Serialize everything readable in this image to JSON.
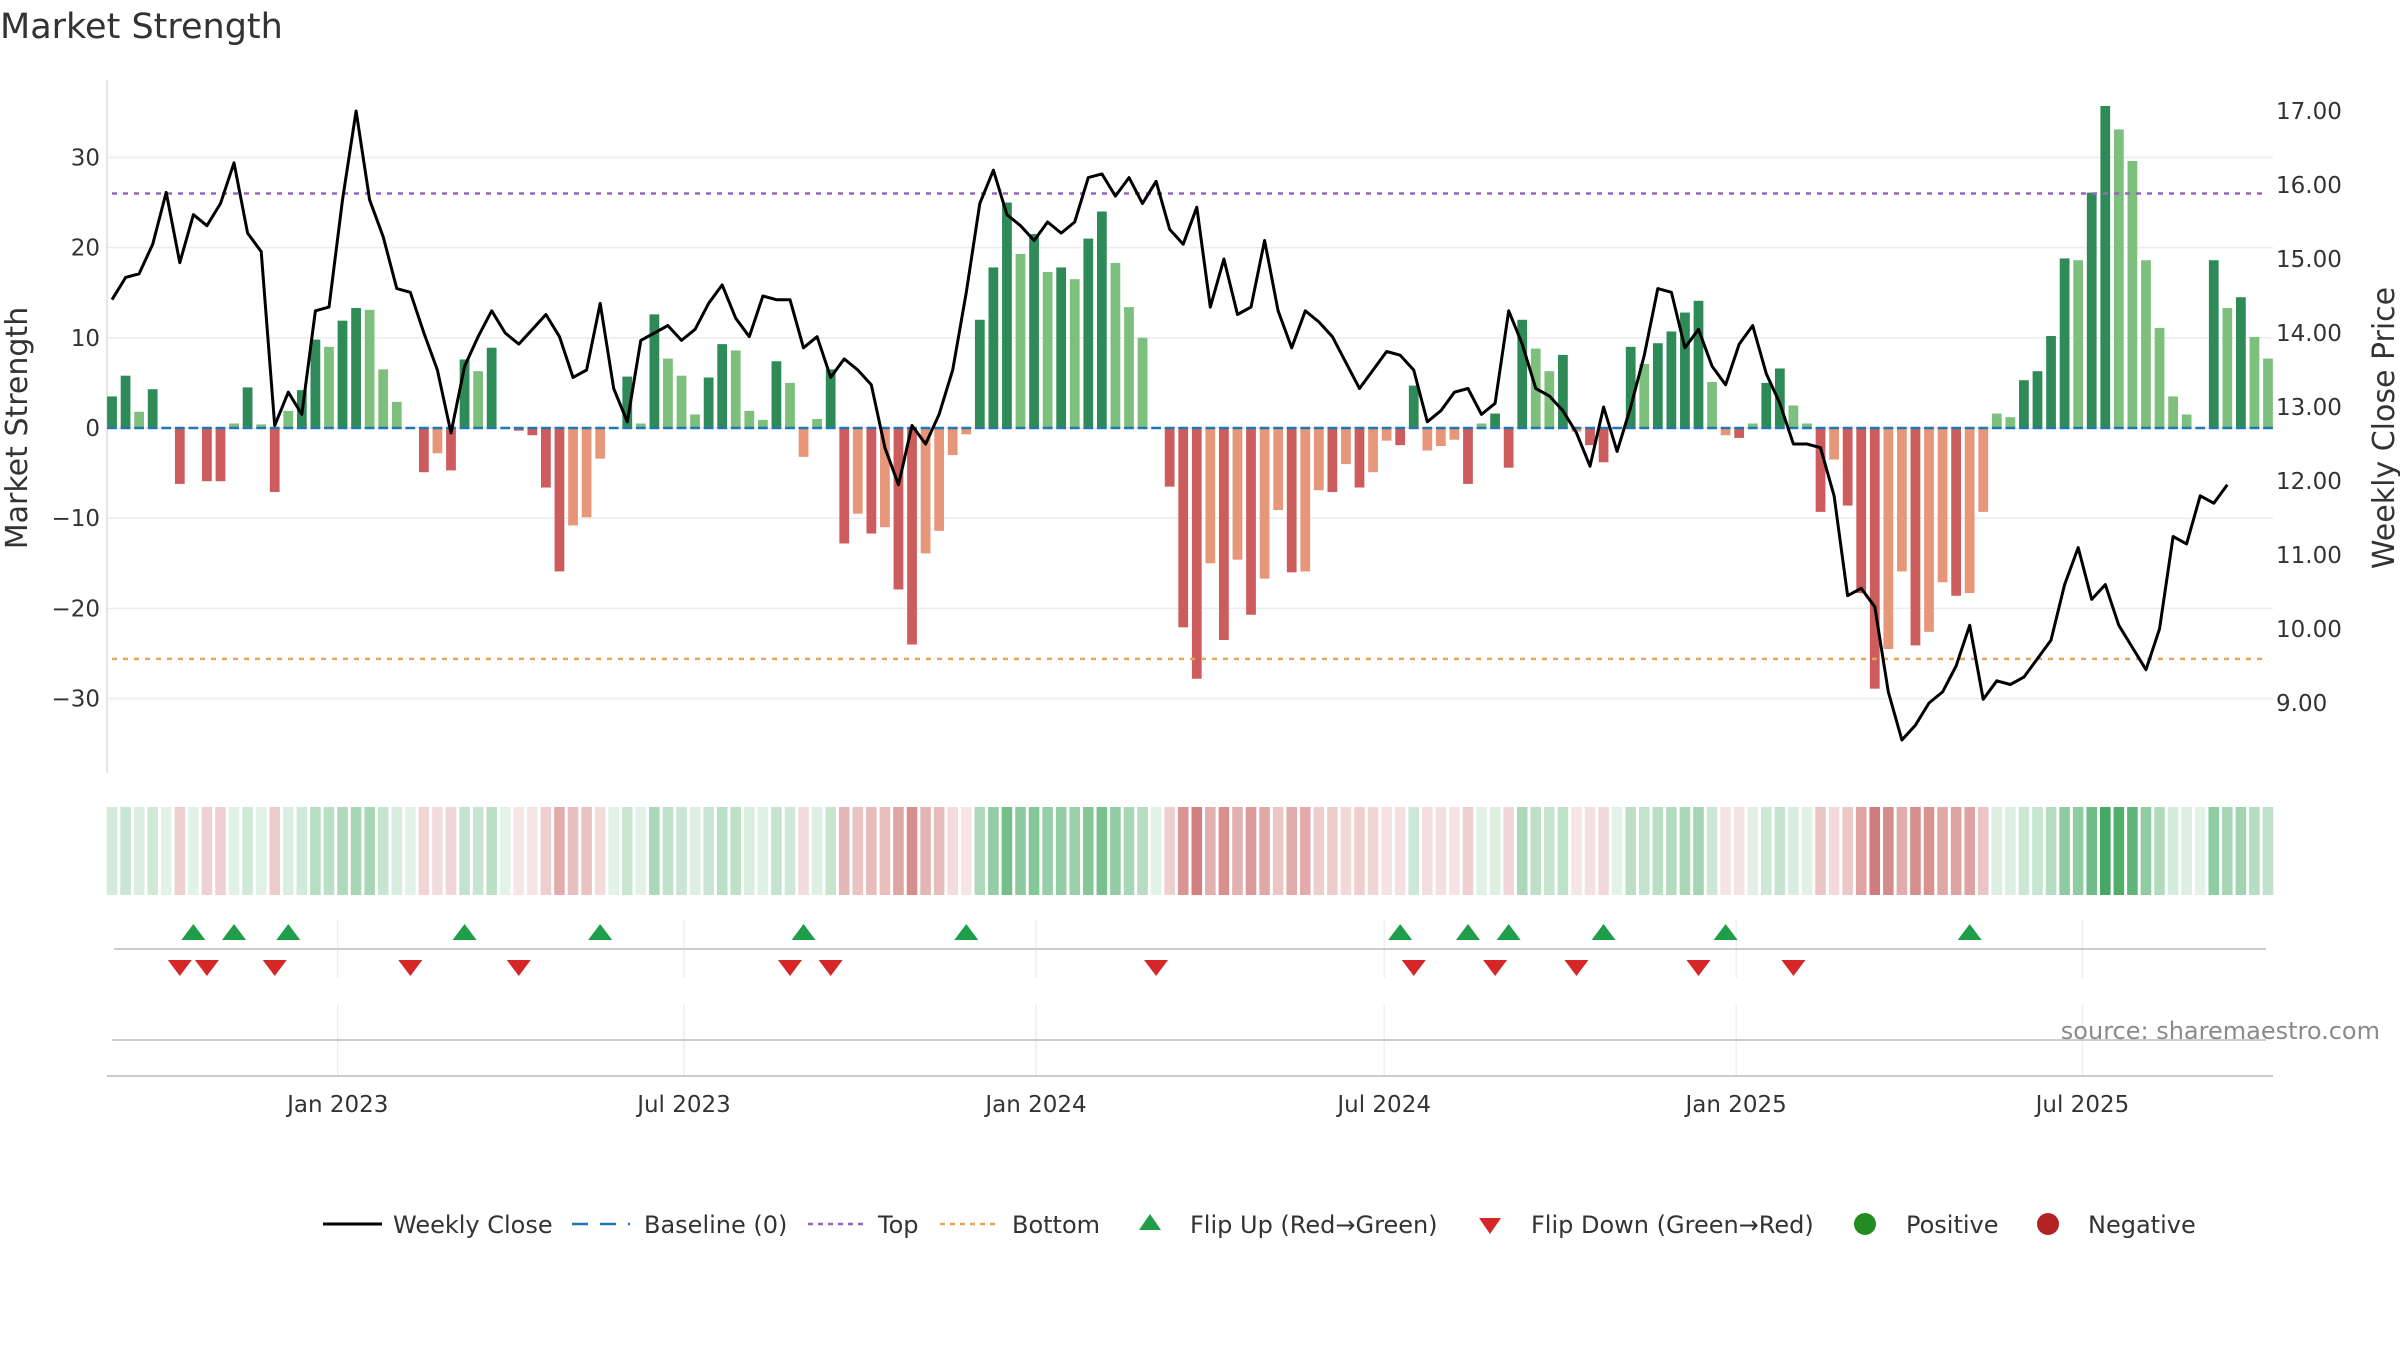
{
  "chart_data": {
    "type": "bar",
    "title": "Market Strength",
    "ylabel": "Market Strength",
    "y2label": "Weekly Close Price",
    "ylim": [
      -38,
      38
    ],
    "y2lim": [
      8.0,
      17.4
    ],
    "yticks": [
      -30,
      -20,
      -10,
      0,
      10,
      20,
      30
    ],
    "ytick_labels": [
      "−30",
      "−20",
      "−10",
      "0",
      "10",
      "20",
      "30"
    ],
    "y2ticks": [
      9,
      10,
      11,
      12,
      13,
      14,
      15,
      16,
      17
    ],
    "y2tick_labels": [
      "9.00",
      "10.00",
      "11.00",
      "12.00",
      "13.00",
      "14.00",
      "15.00",
      "16.00",
      "17.00"
    ],
    "x_start": "2022-09-05",
    "x_end": "2025-10-06",
    "xtick_labels": [
      "Jan 2023",
      "Jul 2023",
      "Jan 2024",
      "Jul 2024",
      "Jan 2025",
      "Jul 2025"
    ],
    "xtick_dates": [
      "2023-01-01",
      "2023-07-01",
      "2024-01-01",
      "2024-07-01",
      "2025-01-01",
      "2025-07-01"
    ],
    "thresholds": {
      "top": 26,
      "bottom": -25.6
    },
    "series": [
      {
        "name": "Market Strength",
        "values": [
          3.5,
          5.8,
          1.8,
          4.3,
          0,
          -6.2,
          0,
          -5.9,
          -5.9,
          0.5,
          4.5,
          0.4,
          -7.1,
          1.9,
          4.2,
          9.8,
          9.0,
          11.9,
          13.3,
          13.1,
          6.5,
          2.9,
          0,
          -4.9,
          -2.8,
          -4.7,
          7.6,
          6.3,
          8.9,
          0,
          -0.3,
          -0.8,
          -6.6,
          -15.9,
          -10.8,
          -9.9,
          -3.4,
          0,
          5.7,
          0.5,
          12.6,
          7.7,
          5.8,
          1.5,
          5.6,
          9.3,
          8.6,
          1.9,
          0.9,
          7.4,
          5.0,
          -3.2,
          1.0,
          6.5,
          -12.8,
          -9.5,
          -11.7,
          -11.0,
          -17.9,
          -24.0,
          -13.9,
          -11.4,
          -3.0,
          -0.7,
          12.0,
          17.8,
          25.0,
          19.3,
          21.5,
          17.3,
          17.8,
          16.5,
          21.0,
          24.0,
          18.3,
          13.4,
          10.0,
          0,
          -6.5,
          -22.1,
          -27.8,
          -15.0,
          -23.5,
          -14.6,
          -20.7,
          -16.7,
          -9.1,
          -16.0,
          -15.9,
          -6.9,
          -7.1,
          -4.0,
          -6.6,
          -4.9,
          -1.4,
          -1.9,
          4.7,
          -2.5,
          -2.0,
          -1.3,
          -6.2,
          0.5,
          1.6,
          -4.4,
          12.0,
          8.8,
          6.3,
          8.1,
          -0.4,
          -1.9,
          -3.8,
          0,
          9.0,
          7.1,
          9.4,
          10.7,
          12.8,
          14.1,
          5.1,
          -0.8,
          -1.1,
          0.5,
          5.0,
          6.6,
          2.5,
          0.5,
          -9.3,
          -3.5,
          -8.6,
          -18.3,
          -28.9,
          -24.5,
          -15.9,
          -24.1,
          -22.6,
          -17.1,
          -18.6,
          -18.3,
          -9.3,
          1.6,
          1.2,
          5.3,
          6.3,
          10.2,
          18.8,
          18.6,
          26.1,
          35.7,
          33.1,
          29.6,
          18.6,
          11.1,
          3.5,
          1.5,
          0,
          18.6,
          13.3,
          14.5,
          10.1,
          7.7
        ]
      },
      {
        "name": "Weekly Close",
        "values": [
          14.45,
          14.75,
          14.8,
          15.2,
          15.9,
          14.95,
          15.6,
          15.45,
          15.75,
          16.3,
          15.35,
          15.1,
          12.75,
          13.2,
          12.9,
          14.3,
          14.35,
          15.8,
          17.0,
          15.8,
          15.3,
          14.6,
          14.55,
          14.0,
          13.5,
          12.65,
          13.55,
          13.95,
          14.3,
          14.0,
          13.85,
          14.05,
          14.25,
          13.95,
          13.4,
          13.5,
          14.4,
          13.25,
          12.8,
          13.9,
          14.0,
          14.1,
          13.9,
          14.05,
          14.4,
          14.65,
          14.2,
          13.95,
          14.5,
          14.45,
          14.45,
          13.8,
          13.95,
          13.4,
          13.65,
          13.5,
          13.3,
          12.45,
          11.95,
          12.75,
          12.5,
          12.9,
          13.5,
          14.55,
          15.75,
          16.2,
          15.6,
          15.45,
          15.25,
          15.5,
          15.35,
          15.5,
          16.1,
          16.15,
          15.85,
          16.1,
          15.75,
          16.05,
          15.4,
          15.2,
          15.7,
          14.35,
          15.0,
          14.25,
          14.35,
          15.25,
          14.3,
          13.8,
          14.3,
          14.15,
          13.95,
          13.6,
          13.25,
          13.5,
          13.75,
          13.7,
          13.5,
          12.8,
          12.95,
          13.2,
          13.25,
          12.9,
          13.05,
          14.3,
          13.85,
          13.25,
          13.15,
          12.95,
          12.65,
          12.2,
          13.0,
          12.4,
          13.0,
          13.7,
          14.6,
          14.55,
          13.8,
          14.05,
          13.55,
          13.3,
          13.85,
          14.1,
          13.45,
          13.05,
          12.5,
          12.5,
          12.45,
          11.8,
          10.45,
          10.55,
          10.3,
          9.15,
          8.5,
          8.7,
          9.0,
          9.15,
          9.5,
          10.05,
          9.05,
          9.3,
          9.25,
          9.35,
          9.6,
          9.85,
          10.6,
          11.1,
          10.4,
          10.6,
          10.05,
          9.75,
          9.45,
          10.0,
          11.25,
          11.15,
          11.8,
          11.7,
          11.95
        ]
      }
    ],
    "flip_up_weeks": [
      6,
      9,
      13,
      26,
      36,
      51,
      63,
      95,
      100,
      103,
      110,
      119,
      137
    ],
    "flip_down_weeks": [
      5,
      7,
      12,
      22,
      30,
      50,
      53,
      77,
      96,
      102,
      108,
      117,
      124
    ],
    "legend": [
      "Weekly Close",
      "Baseline (0)",
      "Top",
      "Bottom",
      "Flip Up (Red→Green)",
      "Flip Down (Green→Red)",
      "Positive",
      "Negative"
    ],
    "source": "source: sharemaestro.com"
  },
  "colors": {
    "pos_dark": "#2e8b57",
    "pos_light": "#7dbf7d",
    "neg_dark": "#cd5c5c",
    "neg_light": "#e8967a",
    "line": "#000000",
    "baseline": "#1f77b4",
    "top": "#9467bd",
    "bottom": "#e5a55a",
    "flip_up": "#1f9e4a",
    "flip_down": "#d62728",
    "positive": "#228b22",
    "negative": "#b22222"
  }
}
